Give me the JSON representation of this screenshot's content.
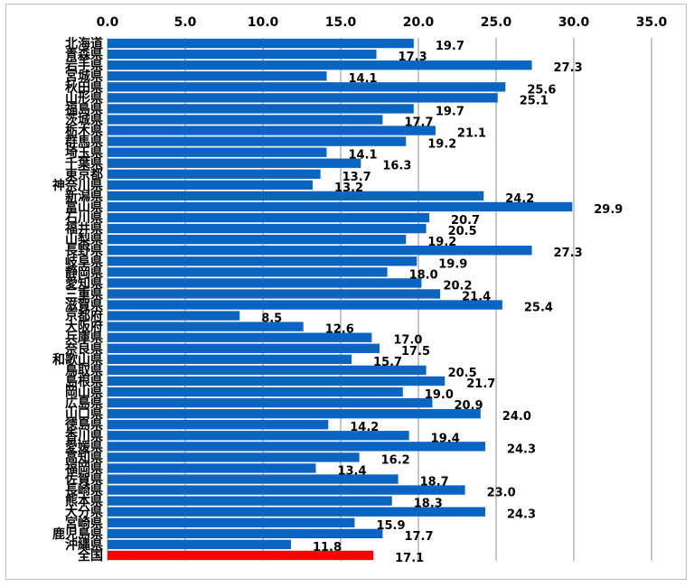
{
  "chart_data": {
    "type": "bar",
    "orientation": "horizontal",
    "xlim": [
      0,
      35
    ],
    "x_ticks": [
      "0.0",
      "5.0",
      "10.0",
      "15.0",
      "20.0",
      "25.0",
      "30.0",
      "35.0"
    ],
    "x_axis_position": "top",
    "grid": "vertical",
    "bar_color": "#0a64c2",
    "highlight_color": "#ff0000",
    "categories": [
      "北海道",
      "青森県",
      "岩手県",
      "宮城県",
      "秋田県",
      "山形県",
      "福島県",
      "茨城県",
      "栃木県",
      "群馬県",
      "埼玉県",
      "千葉県",
      "東京都",
      "神奈川県",
      "新潟県",
      "富山県",
      "石川県",
      "福井県",
      "山梨県",
      "長野県",
      "岐阜県",
      "静岡県",
      "愛知県",
      "三重県",
      "滋賀県",
      "京都府",
      "大阪府",
      "兵庫県",
      "奈良県",
      "和歌山県",
      "鳥取県",
      "島根県",
      "岡山県",
      "広島県",
      "山口県",
      "徳島県",
      "香川県",
      "愛媛県",
      "高知県",
      "福岡県",
      "佐賀県",
      "長崎県",
      "熊本県",
      "大分県",
      "宮崎県",
      "鹿児島県",
      "沖縄県",
      "全国"
    ],
    "values": [
      19.7,
      17.3,
      27.3,
      14.1,
      25.6,
      25.1,
      19.7,
      17.7,
      21.1,
      19.2,
      14.1,
      16.3,
      13.7,
      13.2,
      24.2,
      29.9,
      20.7,
      20.5,
      19.2,
      27.3,
      19.9,
      18.0,
      20.2,
      21.4,
      25.4,
      8.5,
      12.6,
      17.0,
      17.5,
      15.7,
      20.5,
      21.7,
      19.0,
      20.9,
      24.0,
      14.2,
      19.4,
      24.3,
      16.2,
      13.4,
      18.7,
      23.0,
      18.3,
      24.3,
      15.9,
      17.7,
      11.8,
      17.1
    ],
    "value_labels": [
      "19.7",
      "17.3",
      "27.3",
      "14.1",
      "25.6",
      "25.1",
      "19.7",
      "17.7",
      "21.1",
      "19.2",
      "14.1",
      "16.3",
      "13.7",
      "13.2",
      "24.2",
      "29.9",
      "20.7",
      "20.5",
      "19.2",
      "27.3",
      "19.9",
      "18.0",
      "20.2",
      "21.4",
      "25.4",
      "8.5",
      "12.6",
      "17.0",
      "17.5",
      "15.7",
      "20.5",
      "21.7",
      "19.0",
      "20.9",
      "24.0",
      "14.2",
      "19.4",
      "24.3",
      "16.2",
      "13.4",
      "18.7",
      "23.0",
      "18.3",
      "24.3",
      "15.9",
      "17.7",
      "11.8",
      "17.1"
    ],
    "highlight_category": "全国"
  }
}
